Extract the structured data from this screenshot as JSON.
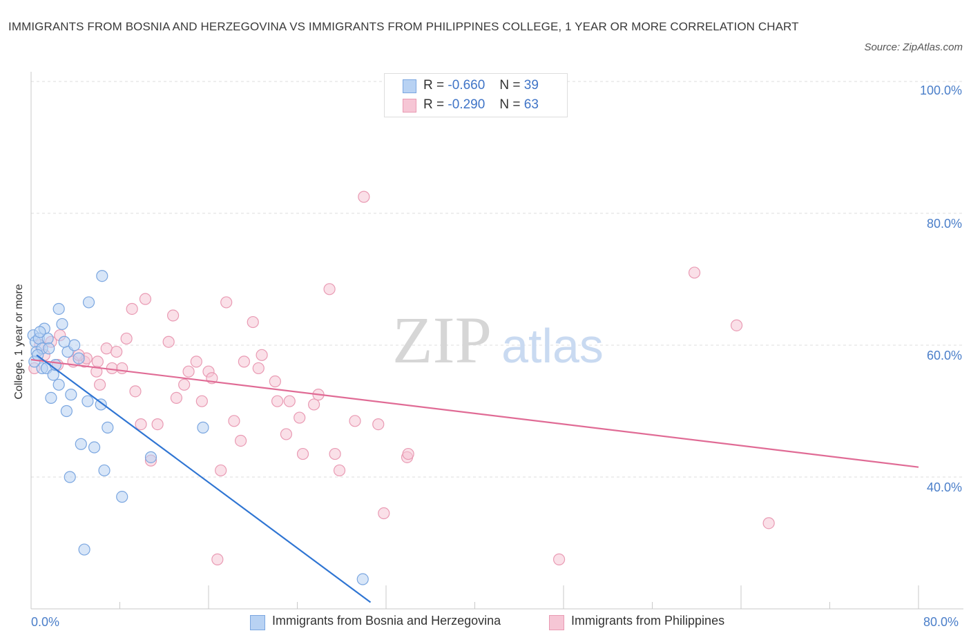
{
  "header": {
    "title": "IMMIGRANTS FROM BOSNIA AND HERZEGOVINA VS IMMIGRANTS FROM PHILIPPINES COLLEGE, 1 YEAR OR MORE CORRELATION CHART",
    "source": "Source: ZipAtlas.com"
  },
  "watermark": {
    "zip": "ZIP",
    "atlas": "atlas"
  },
  "legend": {
    "rows": [
      {
        "r_label": "R =",
        "r_value": "-0.660",
        "n_label": "N =",
        "n_value": "39"
      },
      {
        "r_label": "R =",
        "r_value": "-0.290",
        "n_label": "N =",
        "n_value": "63"
      }
    ]
  },
  "colors": {
    "series1_fill": "#b8d2f3",
    "series1_stroke": "#7aa6e0",
    "series1_line": "#2f75d3",
    "series2_fill": "#f6c6d5",
    "series2_stroke": "#e99ab3",
    "series2_line": "#e06b95",
    "tick_text": "#4a7ec9",
    "grid": "#dedede"
  },
  "chart_data": {
    "type": "scatter",
    "title": "IMMIGRANTS FROM BOSNIA AND HERZEGOVINA VS IMMIGRANTS FROM PHILIPPINES COLLEGE, 1 YEAR OR MORE CORRELATION CHART",
    "xlabel": "",
    "ylabel": "College, 1 year or more",
    "xlim": [
      0,
      80
    ],
    "ylim": [
      20,
      100
    ],
    "x_tick_labels": [
      "0.0%",
      "80.0%"
    ],
    "y_tick_labels": [
      "100.0%",
      "80.0%",
      "60.0%",
      "40.0%"
    ],
    "y_ticks": [
      100,
      80,
      60,
      40
    ],
    "grid": true,
    "legend_position": "bottom",
    "series": [
      {
        "name": "Immigrants from Bosnia and Herzegovina",
        "points": [
          [
            0.2,
            61.5
          ],
          [
            0.4,
            60.5
          ],
          [
            0.5,
            59.0
          ],
          [
            0.7,
            61.0
          ],
          [
            1.0,
            59.5
          ],
          [
            1.0,
            56.5
          ],
          [
            1.2,
            62.5
          ],
          [
            1.4,
            56.5
          ],
          [
            1.5,
            61.0
          ],
          [
            1.8,
            52.0
          ],
          [
            2.0,
            55.5
          ],
          [
            2.5,
            54.0
          ],
          [
            2.5,
            65.5
          ],
          [
            2.8,
            63.2
          ],
          [
            3.2,
            50.0
          ],
          [
            3.3,
            59.0
          ],
          [
            3.5,
            40.0
          ],
          [
            3.6,
            52.5
          ],
          [
            3.9,
            60.0
          ],
          [
            4.3,
            58.0
          ],
          [
            4.5,
            45.0
          ],
          [
            4.8,
            29.0
          ],
          [
            5.1,
            51.5
          ],
          [
            5.2,
            66.5
          ],
          [
            5.7,
            44.5
          ],
          [
            6.3,
            51.0
          ],
          [
            6.4,
            70.5
          ],
          [
            6.6,
            41.0
          ],
          [
            6.9,
            47.5
          ],
          [
            8.2,
            37.0
          ],
          [
            10.8,
            43.0
          ],
          [
            15.5,
            47.5
          ],
          [
            29.9,
            24.5
          ],
          [
            0.3,
            57.5
          ],
          [
            0.8,
            62.0
          ],
          [
            1.6,
            59.5
          ],
          [
            2.2,
            57.0
          ],
          [
            3.0,
            60.5
          ],
          [
            0.6,
            58.5
          ]
        ],
        "trend": {
          "x": [
            0.5,
            30.6
          ],
          "y": [
            58.5,
            21.0
          ]
        }
      },
      {
        "name": "Immigrants from Philippines",
        "points": [
          [
            0.3,
            56.5
          ],
          [
            0.8,
            60.0
          ],
          [
            1.2,
            58.5
          ],
          [
            2.4,
            57.0
          ],
          [
            2.6,
            61.5
          ],
          [
            3.8,
            57.5
          ],
          [
            4.8,
            57.5
          ],
          [
            5.0,
            58.0
          ],
          [
            5.9,
            56.0
          ],
          [
            6.2,
            54.0
          ],
          [
            6.8,
            59.5
          ],
          [
            7.3,
            56.5
          ],
          [
            7.7,
            59.0
          ],
          [
            8.2,
            56.5
          ],
          [
            8.6,
            61.0
          ],
          [
            9.1,
            65.5
          ],
          [
            9.4,
            53.0
          ],
          [
            9.9,
            48.0
          ],
          [
            10.3,
            67.0
          ],
          [
            10.8,
            42.5
          ],
          [
            11.4,
            48.0
          ],
          [
            12.4,
            60.5
          ],
          [
            12.8,
            64.5
          ],
          [
            13.1,
            52.0
          ],
          [
            13.8,
            54.0
          ],
          [
            14.2,
            56.0
          ],
          [
            14.9,
            57.5
          ],
          [
            15.4,
            51.5
          ],
          [
            16.0,
            56.0
          ],
          [
            16.3,
            55.0
          ],
          [
            16.8,
            27.5
          ],
          [
            17.1,
            41.0
          ],
          [
            17.6,
            66.5
          ],
          [
            18.3,
            48.5
          ],
          [
            18.9,
            45.5
          ],
          [
            19.2,
            57.5
          ],
          [
            20.0,
            63.5
          ],
          [
            20.5,
            56.5
          ],
          [
            20.8,
            58.5
          ],
          [
            22.0,
            54.5
          ],
          [
            22.2,
            51.5
          ],
          [
            23.0,
            46.5
          ],
          [
            23.3,
            51.5
          ],
          [
            24.2,
            49.0
          ],
          [
            24.5,
            43.5
          ],
          [
            25.5,
            51.0
          ],
          [
            25.9,
            52.5
          ],
          [
            26.9,
            68.5
          ],
          [
            27.4,
            43.5
          ],
          [
            27.8,
            41.0
          ],
          [
            29.2,
            48.5
          ],
          [
            30.0,
            82.5
          ],
          [
            31.3,
            48.0
          ],
          [
            31.8,
            34.5
          ],
          [
            33.9,
            43.0
          ],
          [
            34.0,
            43.5
          ],
          [
            47.6,
            27.5
          ],
          [
            59.8,
            71.0
          ],
          [
            63.6,
            63.0
          ],
          [
            66.5,
            33.0
          ],
          [
            4.3,
            58.5
          ],
          [
            6.0,
            57.5
          ],
          [
            1.8,
            60.5
          ]
        ],
        "trend": {
          "x": [
            0,
            80
          ],
          "y": [
            57.8,
            41.5
          ]
        }
      }
    ]
  }
}
